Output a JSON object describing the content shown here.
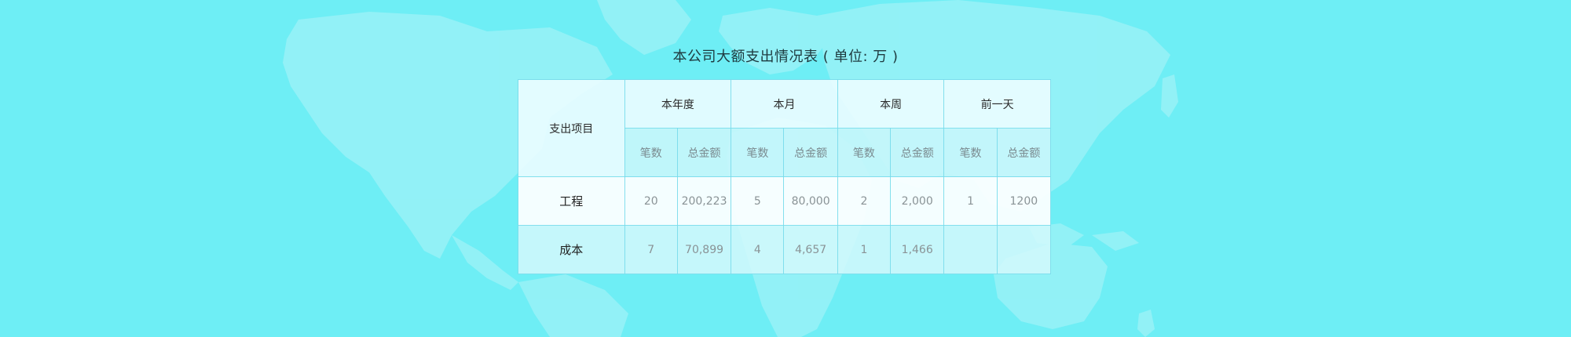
{
  "title": "本公司大额支出情况表 ( 单位: 万 )",
  "table": {
    "project_header": "支出项目",
    "periods": [
      "本年度",
      "本月",
      "本周",
      "前一天"
    ],
    "sub_headers": [
      "笔数",
      "总金额"
    ],
    "rows": [
      {
        "label": "工程",
        "values": [
          "20",
          "200,223",
          "5",
          "80,000",
          "2",
          "2,000",
          "1",
          "1200"
        ]
      },
      {
        "label": "成本",
        "values": [
          "7",
          "70,899",
          "4",
          "4,657",
          "1",
          "1,466",
          "",
          ""
        ]
      }
    ]
  },
  "colors": {
    "background": "#6eeef5",
    "map": "#a8f3f7",
    "border": "#78dceb"
  }
}
